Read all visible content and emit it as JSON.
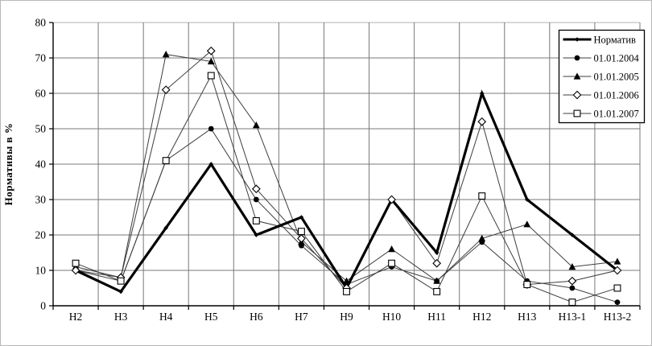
{
  "figure": {
    "background": "#ffffff",
    "outer_border_color": "#b8b8b8",
    "grid_color": "#787878",
    "top_gridline_color": "#b0b0b0",
    "axis_color": "#000000",
    "thin_series_color": "#3d3d3d",
    "norm_series_color": "#000000"
  },
  "chart_data": {
    "type": "line",
    "title": "",
    "xlabel": "",
    "ylabel": "Нормативы в %",
    "ylim": [
      0,
      80
    ],
    "ytick_step": 10,
    "grid": true,
    "legend_position": "top-right",
    "categories": [
      "Н2",
      "Н3",
      "Н4",
      "Н5",
      "Н6",
      "Н7",
      "Н9",
      "Н10",
      "Н11",
      "Н12",
      "Н13",
      "Н13-1",
      "Н13-2"
    ],
    "series": [
      {
        "id": "normativ",
        "name": "Норматив",
        "marker": "diamond-filled",
        "line_width": 3.2,
        "color": "#000000",
        "values": [
          10,
          4,
          22,
          40,
          20,
          25,
          5,
          30,
          15,
          60,
          30,
          20,
          10
        ]
      },
      {
        "id": "y2004",
        "name": "01.01.2004",
        "marker": "circle-filled",
        "line_width": 1,
        "color": "#3d3d3d",
        "values": [
          10,
          7,
          41,
          50,
          30,
          17,
          6,
          11,
          7,
          18,
          7,
          5,
          1
        ]
      },
      {
        "id": "y2005",
        "name": "01.01.2005",
        "marker": "triangle-filled",
        "line_width": 1,
        "color": "#3d3d3d",
        "values": [
          11,
          8,
          71,
          69,
          51,
          18,
          7,
          16,
          7,
          19,
          23,
          11,
          12.5
        ]
      },
      {
        "id": "y2006",
        "name": "01.01.2006",
        "marker": "diamond-open",
        "line_width": 1,
        "color": "#3d3d3d",
        "values": [
          10,
          8,
          61,
          72,
          33,
          19,
          5,
          30,
          12,
          52,
          6,
          7,
          10
        ]
      },
      {
        "id": "y2007",
        "name": "01.01.2007",
        "marker": "square-open",
        "line_width": 1,
        "color": "#3d3d3d",
        "values": [
          12,
          7,
          41,
          65,
          24,
          21,
          4,
          12,
          4,
          31,
          6,
          1,
          5
        ]
      }
    ]
  }
}
